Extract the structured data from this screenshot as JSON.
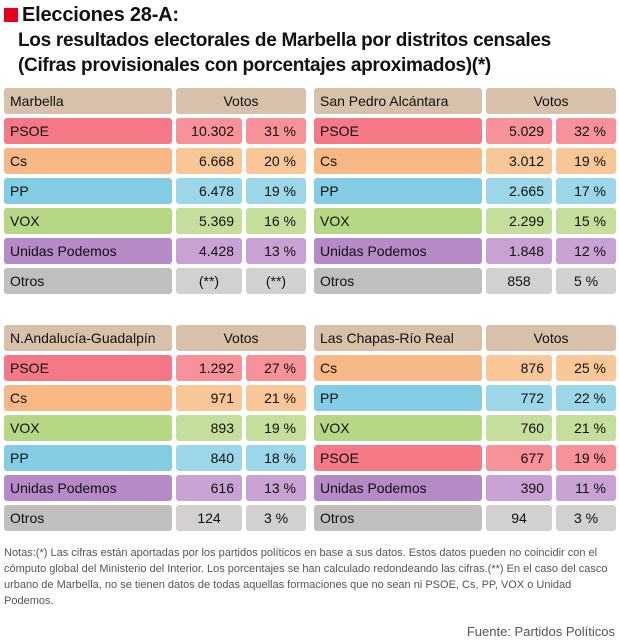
{
  "header": {
    "title": "Elecciones 28-A:",
    "subtitle_line1": "Los resultados electorales de Marbella por distritos censales",
    "subtitle_line2": "(Cifras provisionales con porcentajes aproximados)(*)"
  },
  "colors": {
    "header_bg": "#d7c1ab",
    "accent_red": "#e2001a",
    "PSOE": [
      "#f7919a",
      "#f57887"
    ],
    "Cs": [
      "#f9c698",
      "#f7b886"
    ],
    "PP": [
      "#9bd7e8",
      "#82cde3"
    ],
    "VOX": [
      "#c4de9b",
      "#b6d784"
    ],
    "Unidas Podemos": [
      "#c8a2d3",
      "#b58ac6"
    ],
    "Otros": [
      "#d2d1d0",
      "#c0bfbe"
    ]
  },
  "tables": [
    {
      "district": "Marbella",
      "votes_header": "Votos",
      "rows": [
        {
          "party": "PSOE",
          "votes": "10.302",
          "pct": "31 %"
        },
        {
          "party": "Cs",
          "votes": "6.668",
          "pct": "20 %"
        },
        {
          "party": "PP",
          "votes": "6.478",
          "pct": "19 %"
        },
        {
          "party": "VOX",
          "votes": "5.369",
          "pct": "16 %"
        },
        {
          "party": "Unidas Podemos",
          "votes": "4.428",
          "pct": "13 %"
        },
        {
          "party": "Otros",
          "votes": "(**)",
          "pct": "(**)"
        }
      ]
    },
    {
      "district": "San Pedro Alcántara",
      "votes_header": "Votos",
      "rows": [
        {
          "party": "PSOE",
          "votes": "5.029",
          "pct": "32 %"
        },
        {
          "party": "Cs",
          "votes": "3.012",
          "pct": "19 %"
        },
        {
          "party": "PP",
          "votes": "2.665",
          "pct": "17 %"
        },
        {
          "party": "VOX",
          "votes": "2.299",
          "pct": "15 %"
        },
        {
          "party": "Unidas Podemos",
          "votes": "1.848",
          "pct": "12 %"
        },
        {
          "party": "Otros",
          "votes": "858",
          "pct": "5 %"
        }
      ]
    },
    {
      "district": "N.Andalucía-Guadalpín",
      "votes_header": "Votos",
      "rows": [
        {
          "party": "PSOE",
          "votes": "1.292",
          "pct": "27 %"
        },
        {
          "party": "Cs",
          "votes": "971",
          "pct": "21 %"
        },
        {
          "party": "VOX",
          "votes": "893",
          "pct": "19 %"
        },
        {
          "party": "PP",
          "votes": "840",
          "pct": "18 %"
        },
        {
          "party": "Unidas Podemos",
          "votes": "616",
          "pct": "13 %"
        },
        {
          "party": "Otros",
          "votes": "124",
          "pct": "3 %"
        }
      ]
    },
    {
      "district": "Las Chapas-Río Real",
      "votes_header": "Votos",
      "rows": [
        {
          "party": "Cs",
          "votes": "876",
          "pct": "25 %"
        },
        {
          "party": "PP",
          "votes": "772",
          "pct": "22 %"
        },
        {
          "party": "VOX",
          "votes": "760",
          "pct": "21 %"
        },
        {
          "party": "PSOE",
          "votes": "677",
          "pct": "19 %"
        },
        {
          "party": "Unidas Podemos",
          "votes": "390",
          "pct": "11 %"
        },
        {
          "party": "Otros",
          "votes": "94",
          "pct": "3 %"
        }
      ]
    }
  ],
  "notes": "Notas:(*) Las cifras están aportadas por los partidos políticos en base a sus datos. Estos datos pueden no coincidir con el cómputo global del Ministerio del Interior. Los porcentajes se han calculado redondeando las cifras.(**) En el caso del casco urbano de Marbella, no se tienen datos de todas aquellas formaciones que no sean ni PSOE, Cs, PP, VOX o Unidad Podemos.",
  "source": "Fuente: Partidos Políticos"
}
